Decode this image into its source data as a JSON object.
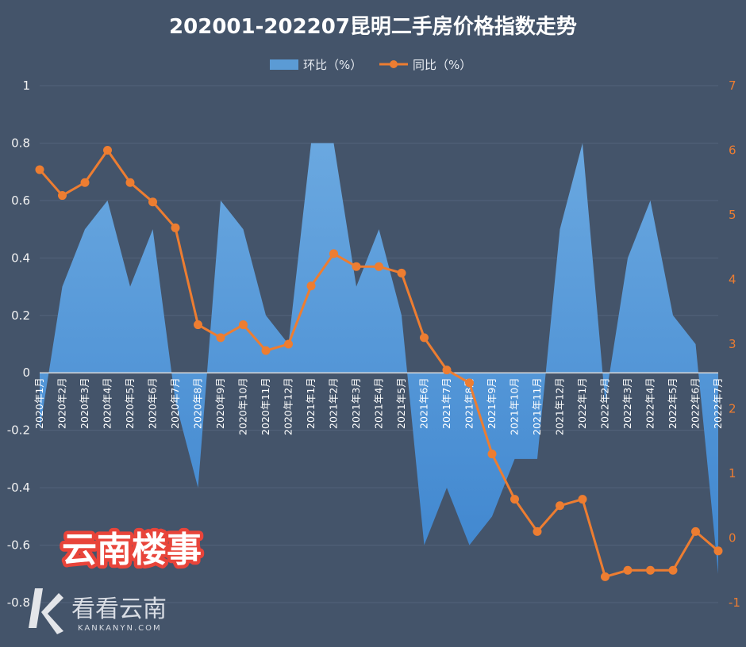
{
  "chart_data": {
    "type": "area",
    "title": "202001-202207昆明二手房价格指数走势",
    "categories": [
      "2020年1月",
      "2020年2月",
      "2020年3月",
      "2020年4月",
      "2020年5月",
      "2020年6月",
      "2020年7月",
      "2020年8月",
      "2020年9月",
      "2020年10月",
      "2020年11月",
      "2020年12月",
      "2021年1月",
      "2021年2月",
      "2021年3月",
      "2021年4月",
      "2021年5月",
      "2021年6月",
      "2021年7月",
      "2021年8月",
      "2021年9月",
      "2021年10月",
      "2021年11月",
      "2021年12月",
      "2022年1月",
      "2022年2月",
      "2022年3月",
      "2022年4月",
      "2022年5月",
      "2022年6月",
      "2022年7月"
    ],
    "series": [
      {
        "name": "环比（%）",
        "type": "area",
        "axis": "left",
        "color": "#5b9bd5",
        "values": [
          -0.2,
          0.3,
          0.5,
          0.6,
          0.3,
          0.5,
          -0.1,
          -0.4,
          0.6,
          0.5,
          0.2,
          0.1,
          0.8,
          0.8,
          0.3,
          0.5,
          0.2,
          -0.6,
          -0.4,
          -0.6,
          -0.5,
          -0.3,
          -0.3,
          0.5,
          0.8,
          -0.1,
          0.4,
          0.6,
          0.2,
          0.1,
          -0.7
        ]
      },
      {
        "name": "同比（%）",
        "type": "line",
        "axis": "right",
        "color": "#ed7d31",
        "values": [
          5.7,
          5.3,
          5.5,
          6.0,
          5.5,
          5.2,
          4.8,
          3.3,
          3.1,
          3.3,
          2.9,
          3.0,
          3.9,
          4.4,
          4.2,
          4.2,
          4.1,
          3.1,
          2.6,
          2.4,
          1.3,
          0.6,
          0.1,
          0.5,
          0.6,
          -0.6,
          -0.5,
          -0.5,
          -0.5,
          0.1,
          -0.2
        ]
      }
    ],
    "y_left": {
      "min": -0.8,
      "max": 1.0,
      "ticks": [
        "-0.8",
        "-0.6",
        "-0.4",
        "-0.2",
        "0",
        "0.2",
        "0.4",
        "0.6",
        "0.8",
        "1"
      ]
    },
    "y_right": {
      "min": -1,
      "max": 7,
      "ticks": [
        "-1",
        "0",
        "1",
        "2",
        "3",
        "4",
        "5",
        "6",
        "7"
      ]
    },
    "legend_position": "top-center",
    "grid": true
  },
  "watermarks": {
    "stamp": "云南楼事",
    "brand": "看看云南",
    "brand_url": "KANKANYN.COM"
  }
}
